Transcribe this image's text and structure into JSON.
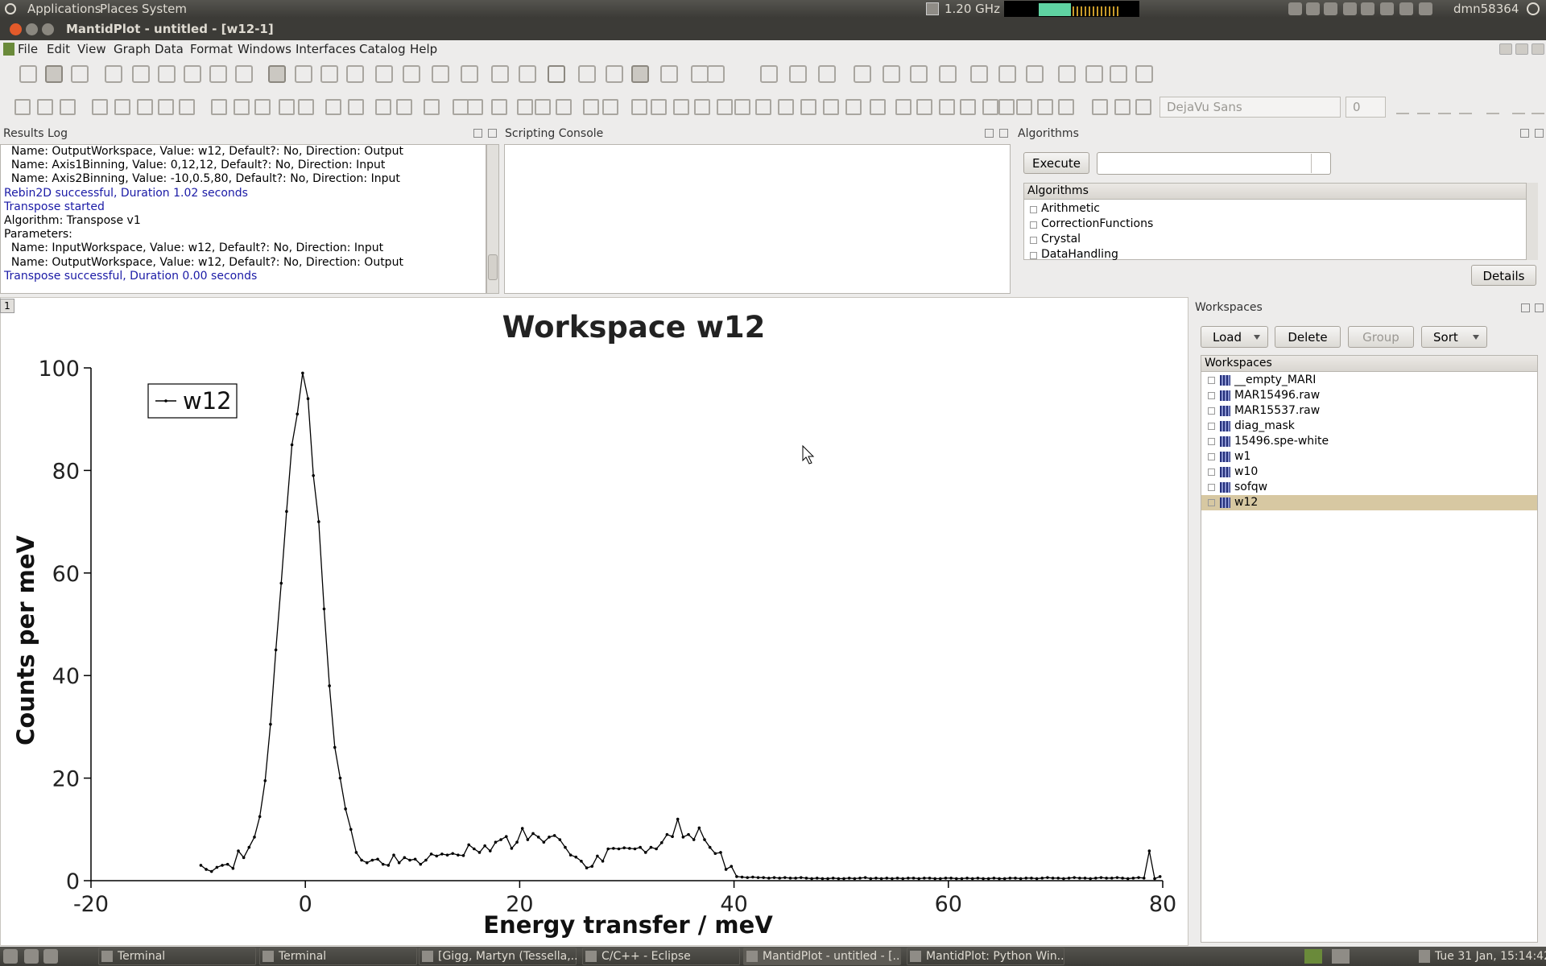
{
  "top_panel": {
    "menus": [
      "Applications",
      "Places",
      "System"
    ],
    "cpu": "1.20 GHz",
    "user": "dmn58364"
  },
  "window_title": "MantidPlot - untitled - [w12-1]",
  "menu_bar": [
    "File",
    "Edit",
    "View",
    "Graph",
    "Data",
    "Format",
    "Windows",
    "Interfaces",
    "Catalog",
    "Help"
  ],
  "font_box": {
    "font": "DejaVu Sans",
    "size": "0"
  },
  "results_log": {
    "title": "Results Log",
    "lines": [
      {
        "text": "  Name: OutputWorkspace, Value: w12, Default?: No, Direction: Output",
        "color": "#000000"
      },
      {
        "text": "  Name: Axis1Binning, Value: 0,12,12, Default?: No, Direction: Input",
        "color": "#000000"
      },
      {
        "text": "  Name: Axis2Binning, Value: -10,0.5,80, Default?: No, Direction: Input",
        "color": "#000000"
      },
      {
        "text": "Rebin2D successful, Duration 1.02 seconds",
        "color": "#1a1aa6"
      },
      {
        "text": "Transpose started",
        "color": "#1a1aa6"
      },
      {
        "text": "Algorithm: Transpose v1",
        "color": "#000000"
      },
      {
        "text": "Parameters:",
        "color": "#000000"
      },
      {
        "text": "  Name: InputWorkspace, Value: w12, Default?: No, Direction: Input",
        "color": "#000000"
      },
      {
        "text": "  Name: OutputWorkspace, Value: w12, Default?: No, Direction: Output",
        "color": "#000000"
      },
      {
        "text": "Transpose successful, Duration 0.00 seconds",
        "color": "#1a1aa6"
      }
    ]
  },
  "scripting_console": {
    "title": "Scripting Console"
  },
  "algorithms": {
    "title": "Algorithms",
    "execute": "Execute",
    "tree_header": "Algorithms",
    "items": [
      "Arithmetic",
      "CorrectionFunctions",
      "Crystal",
      "DataHandling"
    ],
    "details": "Details"
  },
  "plot_window": {
    "tab": "1"
  },
  "chart_data": {
    "type": "line",
    "title": "Workspace w12",
    "x_label": "Energy transfer / meV",
    "y_label": "Counts per meV",
    "x": [
      -9.75,
      -9.25,
      -8.75,
      -8.25,
      -7.75,
      -7.25,
      -6.75,
      -6.25,
      -5.75,
      -5.25,
      -4.75,
      -4.25,
      -3.75,
      -3.25,
      -2.75,
      -2.25,
      -1.75,
      -1.25,
      -0.75,
      -0.25,
      0.25,
      0.75,
      1.25,
      1.75,
      2.25,
      2.75,
      3.25,
      3.75,
      4.25,
      4.75,
      5.25,
      5.75,
      6.25,
      6.75,
      7.25,
      7.75,
      8.25,
      8.75,
      9.25,
      9.75,
      10.25,
      10.75,
      11.25,
      11.75,
      12.25,
      12.75,
      13.25,
      13.75,
      14.25,
      14.75,
      15.25,
      15.75,
      16.25,
      16.75,
      17.25,
      17.75,
      18.25,
      18.75,
      19.25,
      19.75,
      20.25,
      20.75,
      21.25,
      21.75,
      22.25,
      22.75,
      23.25,
      23.75,
      24.25,
      24.75,
      25.25,
      25.75,
      26.25,
      26.75,
      27.25,
      27.75,
      28.25,
      28.75,
      29.25,
      29.75,
      30.25,
      30.75,
      31.25,
      31.75,
      32.25,
      32.75,
      33.25,
      33.75,
      34.25,
      34.75,
      35.25,
      35.75,
      36.25,
      36.75,
      37.25,
      37.75,
      38.25,
      38.75,
      39.25,
      39.75,
      40.25,
      40.75,
      41.25,
      41.75,
      42.25,
      42.75,
      43.25,
      43.75,
      44.25,
      44.75,
      45.25,
      45.75,
      46.25,
      46.75,
      47.25,
      47.75,
      48.25,
      48.75,
      49.25,
      49.75,
      50.25,
      50.75,
      51.25,
      51.75,
      52.25,
      52.75,
      53.25,
      53.75,
      54.25,
      54.75,
      55.25,
      55.75,
      56.25,
      56.75,
      57.25,
      57.75,
      58.25,
      58.75,
      59.25,
      59.75,
      60.25,
      60.75,
      61.25,
      61.75,
      62.25,
      62.75,
      63.25,
      63.75,
      64.25,
      64.75,
      65.25,
      65.75,
      66.25,
      66.75,
      67.25,
      67.75,
      68.25,
      68.75,
      69.25,
      69.75,
      70.25,
      70.75,
      71.25,
      71.75,
      72.25,
      72.75,
      73.25,
      73.75,
      74.25,
      74.75,
      75.25,
      75.75,
      76.25,
      76.75,
      77.25,
      77.75,
      78.25,
      78.75,
      79.25,
      79.75
    ],
    "series": [
      {
        "name": "w12",
        "color": "#000000",
        "values": [
          3,
          2.2,
          1.8,
          2.6,
          3,
          3.2,
          2.4,
          5.8,
          4.5,
          6.5,
          8.5,
          12.5,
          19.5,
          30.5,
          45,
          58,
          72,
          85,
          91,
          99,
          94,
          79,
          70,
          53,
          38,
          26,
          20,
          14,
          10,
          5.5,
          4,
          3.5,
          4,
          4.2,
          3.2,
          3,
          5,
          3.5,
          4.5,
          4,
          4.2,
          3.2,
          4,
          5.2,
          4.8,
          5.2,
          5,
          5.3,
          5,
          4.9,
          7,
          6.2,
          5.5,
          6.8,
          5.8,
          7.5,
          8,
          8.6,
          6.3,
          7.5,
          10.2,
          8,
          9.2,
          8.5,
          7.5,
          8.5,
          8.8,
          8,
          6.5,
          5,
          4.6,
          3.8,
          2.5,
          2.8,
          4.8,
          3.8,
          6.2,
          6.3,
          6.2,
          6.4,
          6.3,
          6.2,
          6.5,
          5.5,
          6.5,
          6.2,
          7.4,
          9,
          8.6,
          12,
          8.5,
          9,
          8,
          10.3,
          8,
          6.5,
          5.3,
          5.5,
          2.2,
          2.8,
          0.8,
          0.7,
          0.6,
          0.7,
          0.6,
          0.6,
          0.5,
          0.6,
          0.5,
          0.6,
          0.5,
          0.5,
          0.6,
          0.5,
          0.4,
          0.5,
          0.4,
          0.4,
          0.5,
          0.4,
          0.4,
          0.5,
          0.4,
          0.5,
          0.6,
          0.4,
          0.5,
          0.4,
          0.5,
          0.4,
          0.5,
          0.4,
          0.5,
          0.5,
          0.4,
          0.5,
          0.5,
          0.4,
          0.4,
          0.5,
          0.5,
          0.4,
          0.4,
          0.5,
          0.4,
          0.5,
          0.4,
          0.4,
          0.5,
          0.4,
          0.4,
          0.5,
          0.5,
          0.4,
          0.5,
          0.5,
          0.4,
          0.5,
          0.6,
          0.5,
          0.5,
          0.4,
          0.5,
          0.6,
          0.5,
          0.5,
          0.4,
          0.5,
          0.6,
          0.5,
          0.5,
          0.6,
          0.5,
          0.4,
          0.5,
          0.6,
          0.5,
          5.8,
          0.4,
          0.8
        ]
      }
    ],
    "xlim": [
      -20,
      80
    ],
    "xticks": [
      -20,
      0,
      20,
      40,
      60,
      80
    ],
    "ylim": [
      0,
      100
    ],
    "yticks": [
      0,
      20,
      40,
      60,
      80,
      100
    ],
    "markers": true,
    "legend": "upper left"
  },
  "workspaces": {
    "title": "Workspaces",
    "buttons": [
      "Load",
      "Delete",
      "Group",
      "Sort"
    ],
    "tree_header": "Workspaces",
    "items": [
      "__empty_MARI",
      "MAR15496.raw",
      "MAR15537.raw",
      "diag_mask",
      "15496.spe-white",
      "w1",
      "w10",
      "sofqw",
      "w12"
    ],
    "selected_index": 8
  },
  "taskbar": {
    "items": [
      "Terminal",
      "Terminal",
      "[Gigg, Martyn (Tessella,...",
      "C/C++ - Eclipse",
      "MantidPlot - untitled - [...",
      "MantidPlot: Python Win..."
    ],
    "clock": "Tue 31 Jan, 15:14:42"
  }
}
